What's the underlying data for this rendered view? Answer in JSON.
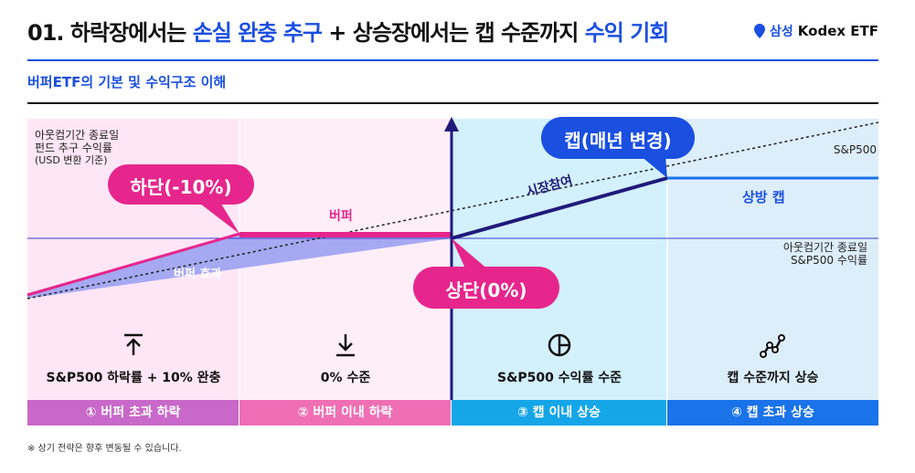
{
  "header": {
    "title_prefix": "01. 하락장에서는 ",
    "title_blue1": "손실 완충 추구",
    "title_mid": " + 상승장에서는 캡 수준까지 ",
    "title_blue2": "수익 기회",
    "brand_kr": "삼성",
    "brand_en": "Kodex ETF"
  },
  "subtitle": "버퍼ETF의 기본 및 수익구조 이해",
  "diagram": {
    "y_axis_label": [
      "아웃컴기간 종료일",
      "펀드 추구 수익률",
      "(USD 변환 기준)"
    ],
    "x_axis_label": [
      "아웃컴기간 종료일",
      "S&P500 수익률"
    ],
    "sp500_label": "S&P500",
    "bubble_lower": "하단(-10%)",
    "bubble_upper": "상단(0%)",
    "bubble_cap": "캡(매년 변경)",
    "label_buffer": "버퍼",
    "label_buffer_effect": "버퍼 효과",
    "label_participation": "시장참여",
    "label_upside_cap": "상방 캡"
  },
  "segments": [
    {
      "category": "S&P500 하락률 + 10% 완충",
      "band": "① 버퍼 초과 하락",
      "icon": "arrow-up-bar-icon",
      "color": "#c868c8"
    },
    {
      "category": "0% 수준",
      "band": "② 버퍼 이내 하락",
      "icon": "arrow-down-bar-icon",
      "color": "#ef6fb5"
    },
    {
      "category": "S&P500 수익률 수준",
      "band": "③ 캡 이내 상승",
      "icon": "pie-circle-icon",
      "color": "#15a6e8"
    },
    {
      "category": "캡 수준까지 상승",
      "band": "④ 캡 초과 상승",
      "icon": "trend-line-icon",
      "color": "#1a73e8"
    }
  ],
  "footnote": "※ 상기 전략은 향후 변동될 수 있습니다.",
  "colors": {
    "accent_blue": "#1a4fe0",
    "pink": "#e6268c",
    "navy": "#1f1a7a",
    "buffer_fill": "#a5a9f2"
  }
}
